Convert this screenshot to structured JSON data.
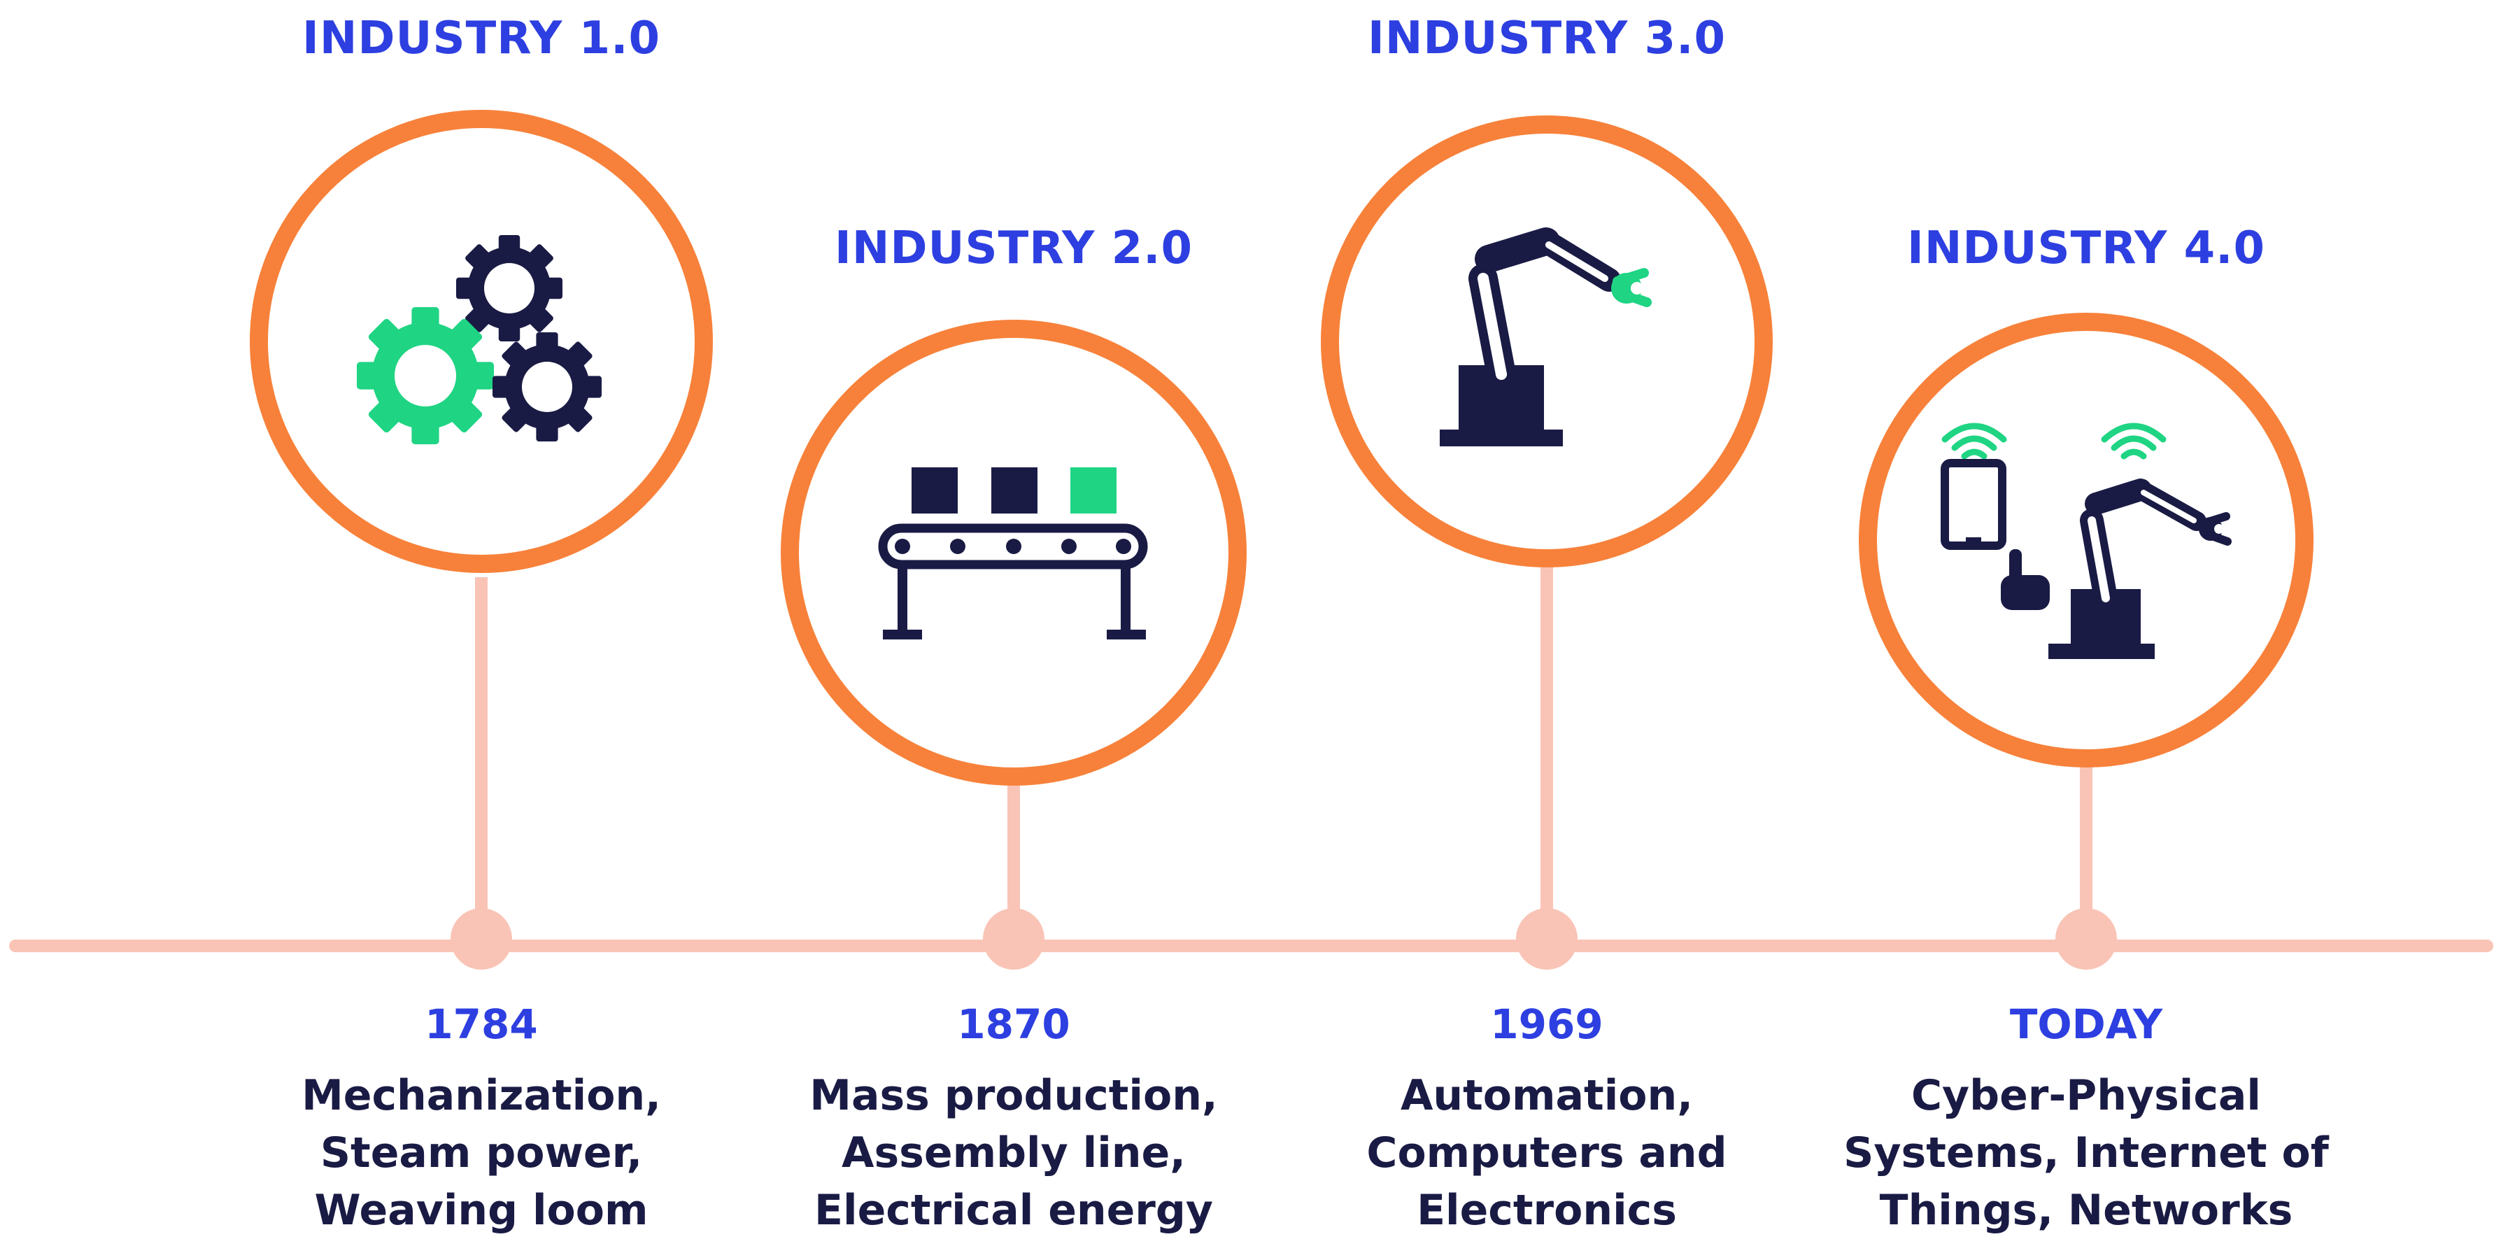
{
  "stages": [
    {
      "title": "INDUSTRY 1.0",
      "year": "1784",
      "lines": [
        "Mechanization,",
        "Steam power,",
        "Weaving loom"
      ],
      "icon": "gears-icon"
    },
    {
      "title": "INDUSTRY 2.0",
      "year": "1870",
      "lines": [
        "Mass production,",
        "Assembly line,",
        "Electrical energy"
      ],
      "icon": "conveyor-belt-icon"
    },
    {
      "title": "INDUSTRY 3.0",
      "year": "1969",
      "lines": [
        "Automation,",
        "Computers and",
        "Electronics"
      ],
      "icon": "robot-arm-icon"
    },
    {
      "title": "INDUSTRY 4.0",
      "year": "TODAY",
      "lines": [
        "Cyber-Physical",
        "Systems, Internet of",
        "Things, Networks"
      ],
      "icon": "connected-robot-icon"
    }
  ],
  "colors": {
    "title_blue": "#2d3fe0",
    "text_navy": "#1a1b44",
    "ring_orange": "#f7813a",
    "timeline_pink": "#f9c4b6",
    "accent_green": "#1fd483",
    "icon_navy": "#1a1b44"
  }
}
